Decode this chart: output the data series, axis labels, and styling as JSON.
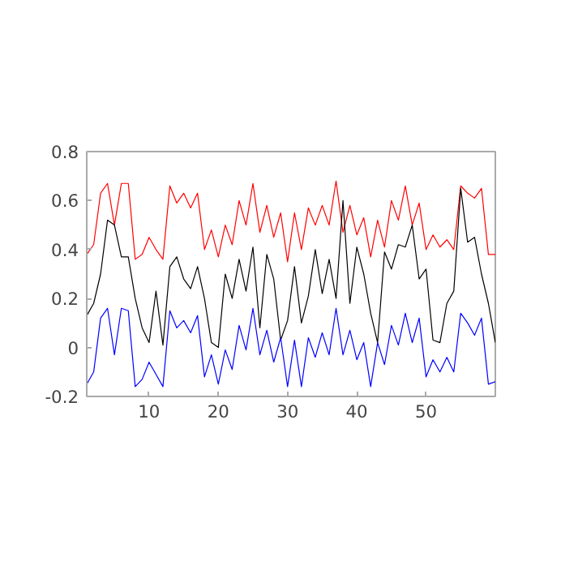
{
  "chart_data": {
    "type": "line",
    "x": [
      1,
      2,
      3,
      4,
      5,
      6,
      7,
      8,
      9,
      10,
      11,
      12,
      13,
      14,
      15,
      16,
      17,
      18,
      19,
      20,
      21,
      22,
      23,
      24,
      25,
      26,
      27,
      28,
      29,
      30,
      31,
      32,
      33,
      34,
      35,
      36,
      37,
      38,
      39,
      40,
      41,
      42,
      43,
      44,
      45,
      46,
      47,
      48,
      49,
      50,
      51,
      52,
      53,
      54,
      55,
      56,
      57,
      58,
      59,
      60
    ],
    "series": [
      {
        "color": "#ff0000",
        "values": [
          0.38,
          0.42,
          0.63,
          0.67,
          0.5,
          0.67,
          0.67,
          0.36,
          0.38,
          0.45,
          0.4,
          0.36,
          0.66,
          0.59,
          0.63,
          0.57,
          0.63,
          0.4,
          0.48,
          0.37,
          0.5,
          0.42,
          0.6,
          0.5,
          0.67,
          0.47,
          0.58,
          0.45,
          0.55,
          0.35,
          0.55,
          0.4,
          0.57,
          0.5,
          0.58,
          0.5,
          0.68,
          0.47,
          0.58,
          0.46,
          0.53,
          0.37,
          0.52,
          0.41,
          0.6,
          0.52,
          0.66,
          0.5,
          0.59,
          0.4,
          0.46,
          0.41,
          0.44,
          0.4,
          0.66,
          0.63,
          0.61,
          0.65,
          0.38,
          0.38
        ]
      },
      {
        "color": "#000000",
        "values": [
          0.13,
          0.18,
          0.3,
          0.52,
          0.5,
          0.37,
          0.37,
          0.2,
          0.08,
          0.02,
          0.23,
          0.01,
          0.33,
          0.37,
          0.28,
          0.24,
          0.33,
          0.2,
          0.02,
          0.0,
          0.3,
          0.2,
          0.36,
          0.23,
          0.41,
          0.08,
          0.38,
          0.28,
          0.03,
          0.11,
          0.33,
          0.1,
          0.21,
          0.4,
          0.22,
          0.36,
          0.2,
          0.6,
          0.18,
          0.41,
          0.3,
          0.14,
          0.02,
          0.39,
          0.32,
          0.42,
          0.41,
          0.5,
          0.28,
          0.32,
          0.03,
          0.02,
          0.18,
          0.23,
          0.65,
          0.43,
          0.45,
          0.3,
          0.18,
          0.02
        ]
      },
      {
        "color": "#0000ff",
        "values": [
          -0.15,
          -0.1,
          0.12,
          0.16,
          -0.03,
          0.16,
          0.15,
          -0.16,
          -0.13,
          -0.06,
          -0.11,
          -0.16,
          0.15,
          0.08,
          0.11,
          0.06,
          0.13,
          -0.12,
          -0.03,
          -0.15,
          -0.01,
          -0.09,
          0.09,
          -0.01,
          0.16,
          -0.03,
          0.07,
          -0.06,
          0.04,
          -0.16,
          0.03,
          -0.16,
          0.04,
          -0.04,
          0.06,
          -0.03,
          0.16,
          -0.03,
          0.07,
          -0.05,
          0.02,
          -0.16,
          0.02,
          -0.07,
          0.09,
          0.01,
          0.14,
          0.02,
          0.12,
          -0.12,
          -0.05,
          -0.1,
          -0.04,
          -0.1,
          0.14,
          0.1,
          0.05,
          0.12,
          -0.15,
          -0.14
        ]
      }
    ],
    "xlim": [
      1,
      60
    ],
    "ylim": [
      -0.2,
      0.8
    ],
    "xticks": [
      10,
      20,
      30,
      40,
      50
    ],
    "yticks": [
      -0.2,
      0,
      0.2,
      0.4,
      0.6,
      0.8
    ],
    "grid": false
  }
}
